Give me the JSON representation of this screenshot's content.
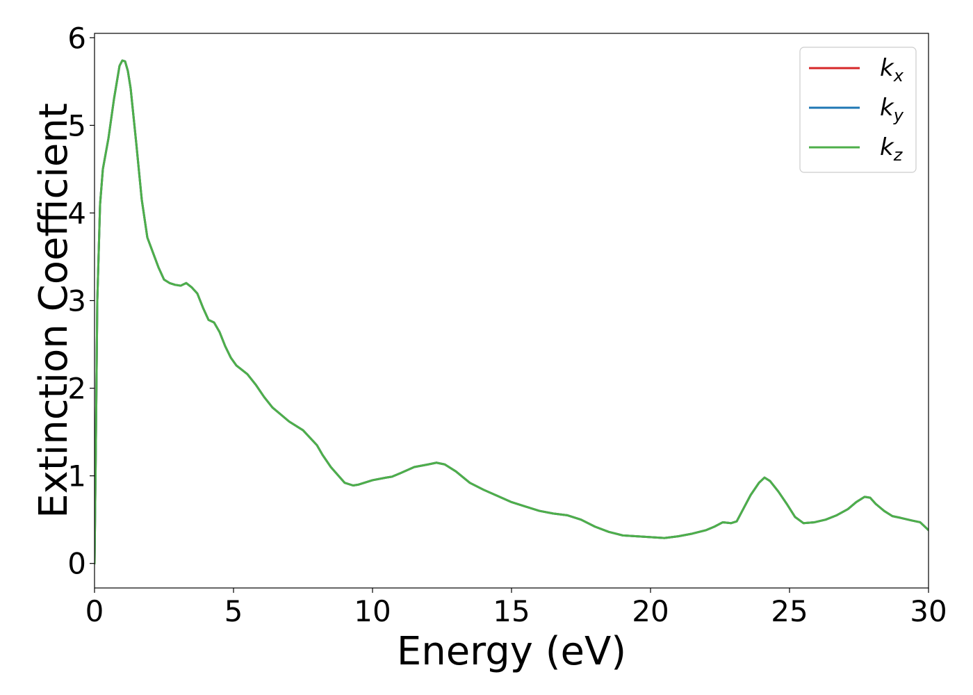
{
  "chart_data": {
    "type": "line",
    "xlabel": "Energy (eV)",
    "ylabel": "Extinction Coefficient",
    "xlim": [
      0,
      30
    ],
    "ylim": [
      -0.28,
      6.05
    ],
    "xticks": [
      0,
      5,
      10,
      15,
      20,
      25,
      30
    ],
    "yticks": [
      0,
      1,
      2,
      3,
      4,
      5,
      6
    ],
    "grid": false,
    "legend_position": "top-right",
    "x": [
      0.0,
      0.05,
      0.1,
      0.2,
      0.3,
      0.5,
      0.7,
      0.9,
      1.0,
      1.1,
      1.2,
      1.3,
      1.5,
      1.7,
      1.9,
      2.1,
      2.3,
      2.5,
      2.7,
      2.9,
      3.1,
      3.3,
      3.5,
      3.7,
      3.9,
      4.1,
      4.3,
      4.5,
      4.7,
      4.9,
      5.1,
      5.3,
      5.5,
      5.8,
      6.1,
      6.4,
      6.7,
      7.0,
      7.5,
      8.0,
      8.2,
      8.5,
      9.0,
      9.3,
      9.5,
      10.0,
      10.5,
      10.7,
      11.0,
      11.5,
      12.0,
      12.3,
      12.6,
      13.0,
      13.5,
      14.0,
      14.5,
      15.0,
      15.5,
      16.0,
      16.5,
      17.0,
      17.5,
      18.0,
      18.5,
      19.0,
      19.5,
      20.0,
      20.5,
      21.0,
      21.5,
      22.0,
      22.3,
      22.6,
      22.9,
      23.1,
      23.3,
      23.6,
      23.9,
      24.1,
      24.3,
      24.6,
      24.9,
      25.2,
      25.5,
      25.9,
      26.3,
      26.7,
      27.1,
      27.4,
      27.7,
      27.9,
      28.1,
      28.4,
      28.7,
      29.0,
      29.4,
      29.7,
      30.0
    ],
    "series": [
      {
        "name": "kx",
        "color": "#d62728",
        "y": [
          0.0,
          1.4,
          3.0,
          4.1,
          4.5,
          4.85,
          5.3,
          5.68,
          5.74,
          5.73,
          5.62,
          5.42,
          4.8,
          4.15,
          3.72,
          3.55,
          3.38,
          3.24,
          3.2,
          3.18,
          3.17,
          3.2,
          3.15,
          3.08,
          2.92,
          2.78,
          2.75,
          2.64,
          2.48,
          2.35,
          2.26,
          2.21,
          2.16,
          2.04,
          1.9,
          1.78,
          1.7,
          1.62,
          1.52,
          1.35,
          1.24,
          1.1,
          0.92,
          0.89,
          0.9,
          0.95,
          0.98,
          0.99,
          1.03,
          1.1,
          1.13,
          1.15,
          1.13,
          1.05,
          0.92,
          0.84,
          0.77,
          0.7,
          0.65,
          0.6,
          0.57,
          0.55,
          0.5,
          0.42,
          0.36,
          0.32,
          0.31,
          0.3,
          0.29,
          0.31,
          0.34,
          0.38,
          0.42,
          0.47,
          0.46,
          0.48,
          0.6,
          0.78,
          0.92,
          0.98,
          0.94,
          0.82,
          0.68,
          0.53,
          0.46,
          0.47,
          0.5,
          0.55,
          0.62,
          0.7,
          0.76,
          0.75,
          0.68,
          0.6,
          0.54,
          0.52,
          0.49,
          0.47,
          0.38
        ]
      },
      {
        "name": "ky",
        "color": "#1f77b4",
        "y": [
          0.0,
          1.4,
          3.0,
          4.1,
          4.5,
          4.85,
          5.3,
          5.68,
          5.74,
          5.73,
          5.62,
          5.42,
          4.8,
          4.15,
          3.72,
          3.55,
          3.38,
          3.24,
          3.2,
          3.18,
          3.17,
          3.2,
          3.15,
          3.08,
          2.92,
          2.78,
          2.75,
          2.64,
          2.48,
          2.35,
          2.26,
          2.21,
          2.16,
          2.04,
          1.9,
          1.78,
          1.7,
          1.62,
          1.52,
          1.35,
          1.24,
          1.1,
          0.92,
          0.89,
          0.9,
          0.95,
          0.98,
          0.99,
          1.03,
          1.1,
          1.13,
          1.15,
          1.13,
          1.05,
          0.92,
          0.84,
          0.77,
          0.7,
          0.65,
          0.6,
          0.57,
          0.55,
          0.5,
          0.42,
          0.36,
          0.32,
          0.31,
          0.3,
          0.29,
          0.31,
          0.34,
          0.38,
          0.42,
          0.47,
          0.46,
          0.48,
          0.6,
          0.78,
          0.92,
          0.98,
          0.94,
          0.82,
          0.68,
          0.53,
          0.46,
          0.47,
          0.5,
          0.55,
          0.62,
          0.7,
          0.76,
          0.75,
          0.68,
          0.6,
          0.54,
          0.52,
          0.49,
          0.47,
          0.38
        ]
      },
      {
        "name": "kz",
        "color": "#4daf4a",
        "y": [
          0.0,
          1.4,
          3.0,
          4.1,
          4.5,
          4.85,
          5.3,
          5.68,
          5.74,
          5.73,
          5.62,
          5.42,
          4.8,
          4.15,
          3.72,
          3.55,
          3.38,
          3.24,
          3.2,
          3.18,
          3.17,
          3.2,
          3.15,
          3.08,
          2.92,
          2.78,
          2.75,
          2.64,
          2.48,
          2.35,
          2.26,
          2.21,
          2.16,
          2.04,
          1.9,
          1.78,
          1.7,
          1.62,
          1.52,
          1.35,
          1.24,
          1.1,
          0.92,
          0.89,
          0.9,
          0.95,
          0.98,
          0.99,
          1.03,
          1.1,
          1.13,
          1.15,
          1.13,
          1.05,
          0.92,
          0.84,
          0.77,
          0.7,
          0.65,
          0.6,
          0.57,
          0.55,
          0.5,
          0.42,
          0.36,
          0.32,
          0.31,
          0.3,
          0.29,
          0.31,
          0.34,
          0.38,
          0.42,
          0.47,
          0.46,
          0.48,
          0.6,
          0.78,
          0.92,
          0.98,
          0.94,
          0.82,
          0.68,
          0.53,
          0.46,
          0.47,
          0.5,
          0.55,
          0.62,
          0.7,
          0.76,
          0.75,
          0.68,
          0.6,
          0.54,
          0.52,
          0.49,
          0.47,
          0.38
        ]
      }
    ],
    "legend": [
      {
        "base": "k",
        "sub": "x",
        "color": "#d62728"
      },
      {
        "base": "k",
        "sub": "y",
        "color": "#1f77b4"
      },
      {
        "base": "k",
        "sub": "z",
        "color": "#4daf4a"
      }
    ]
  }
}
